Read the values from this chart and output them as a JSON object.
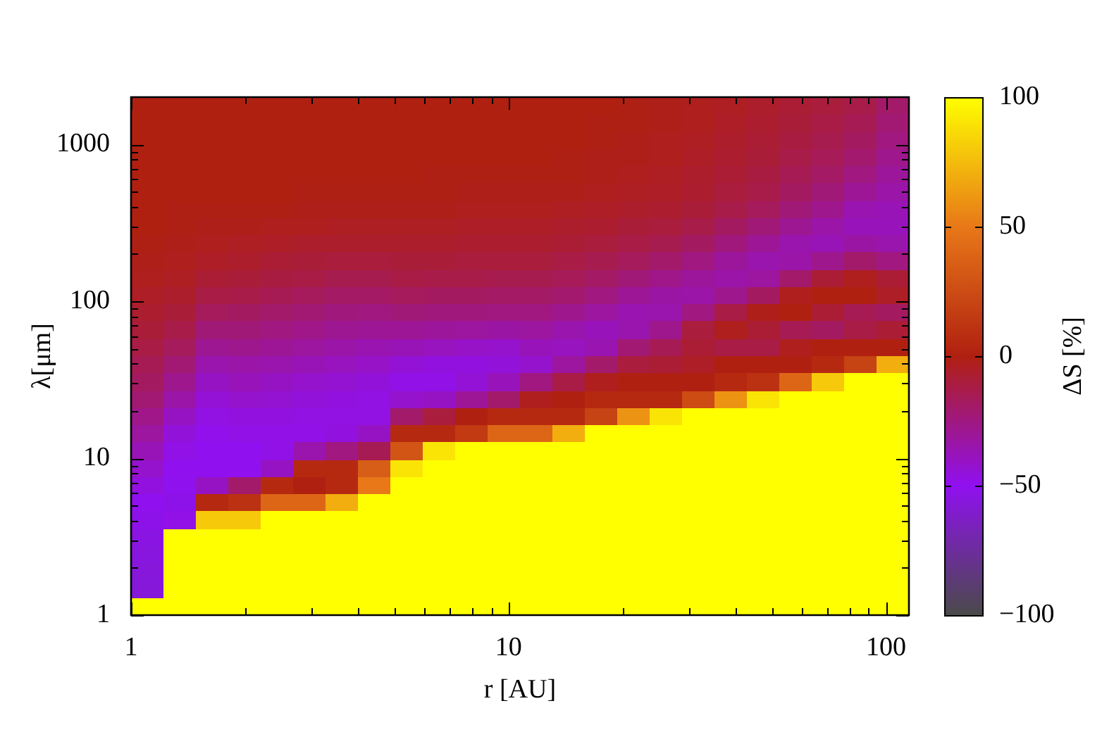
{
  "chart_data": {
    "type": "heatmap",
    "xlabel": "r [AU]",
    "ylabel": "λ[μm]",
    "clabel": "ΔS [%]",
    "log": "xy",
    "xlim": [
      1,
      115
    ],
    "ylim": [
      1,
      2000
    ],
    "xticks": [
      1,
      {
        "value": 2,
        "label": null
      },
      {
        "value": 3,
        "label": null
      },
      {
        "value": 4,
        "label": null
      },
      {
        "value": 5,
        "label": null
      },
      {
        "value": 6,
        "label": null
      },
      {
        "value": 7,
        "label": null
      },
      {
        "value": 8,
        "label": null
      },
      {
        "value": 9,
        "label": null
      },
      10,
      {
        "value": 20,
        "label": null
      },
      {
        "value": 30,
        "label": null
      },
      {
        "value": 40,
        "label": null
      },
      {
        "value": 50,
        "label": null
      },
      {
        "value": 60,
        "label": null
      },
      {
        "value": 70,
        "label": null
      },
      {
        "value": 80,
        "label": null
      },
      {
        "value": 90,
        "label": null
      },
      100
    ],
    "yticks": [
      1,
      {
        "value": 2,
        "label": null
      },
      {
        "value": 3,
        "label": null
      },
      {
        "value": 4,
        "label": null
      },
      {
        "value": 5,
        "label": null
      },
      {
        "value": 6,
        "label": null
      },
      {
        "value": 7,
        "label": null
      },
      {
        "value": 8,
        "label": null
      },
      {
        "value": 9,
        "label": null
      },
      10,
      {
        "value": 20,
        "label": null
      },
      {
        "value": 30,
        "label": null
      },
      {
        "value": 40,
        "label": null
      },
      {
        "value": 50,
        "label": null
      },
      {
        "value": 60,
        "label": null
      },
      {
        "value": 70,
        "label": null
      },
      {
        "value": 80,
        "label": null
      },
      {
        "value": 90,
        "label": null
      },
      100,
      {
        "value": 200,
        "label": null
      },
      {
        "value": 300,
        "label": null
      },
      {
        "value": 400,
        "label": null
      },
      {
        "value": 500,
        "label": null
      },
      {
        "value": 600,
        "label": null
      },
      {
        "value": 700,
        "label": null
      },
      {
        "value": 800,
        "label": null
      },
      {
        "value": 900,
        "label": null
      },
      1000
    ],
    "cells": [
      [
        0,
        0,
        0,
        0,
        0,
        0,
        0,
        0,
        0,
        0,
        0,
        0,
        0,
        0,
        0,
        -1,
        -2,
        -3,
        -4,
        -6,
        -8,
        -10,
        -13,
        -20
      ],
      [
        0,
        0,
        0,
        0,
        0,
        0,
        0,
        0,
        0,
        0,
        0,
        0,
        0,
        0,
        -1,
        -1,
        -2,
        -3,
        -5,
        -7,
        -9,
        -12,
        -15,
        -22
      ],
      [
        0,
        0,
        0,
        0,
        0,
        0,
        0,
        0,
        0,
        0,
        0,
        0,
        0,
        0,
        -1,
        -2,
        -3,
        -4,
        -6,
        -8,
        -11,
        -14,
        -18,
        -25
      ],
      [
        0,
        0,
        0,
        0,
        0,
        0,
        0,
        0,
        0,
        0,
        0,
        0,
        0,
        -1,
        -2,
        -2,
        -3,
        -5,
        -7,
        -9,
        -13,
        -16,
        -21,
        -28
      ],
      [
        0,
        0,
        0,
        0,
        0,
        0,
        0,
        0,
        0,
        -1,
        -1,
        -1,
        -1,
        -1,
        -2,
        -3,
        -4,
        -6,
        -8,
        -11,
        -15,
        -19,
        -25,
        -31
      ],
      [
        0,
        0,
        0,
        0,
        0,
        -1,
        -1,
        -1,
        -1,
        -1,
        -2,
        -2,
        -2,
        -2,
        -3,
        -4,
        -5,
        -7,
        -10,
        -13,
        -18,
        -23,
        -30,
        -34
      ],
      [
        0,
        -1,
        -1,
        -1,
        -1,
        -2,
        -2,
        -2,
        -2,
        -2,
        -3,
        -3,
        -3,
        -4,
        -5,
        -6,
        -7,
        -9,
        -13,
        -17,
        -23,
        -28,
        -36,
        -37
      ],
      [
        0,
        -1,
        -2,
        -2,
        -3,
        -3,
        -4,
        -4,
        -4,
        -4,
        -5,
        -5,
        -5,
        -6,
        -7,
        -9,
        -10,
        -13,
        -18,
        -23,
        -29,
        -34,
        -38,
        -38
      ],
      [
        -1,
        -2,
        -3,
        -4,
        -5,
        -6,
        -6,
        -6,
        -6,
        -6,
        -7,
        -7,
        -7,
        -8,
        -10,
        -12,
        -14,
        -18,
        -24,
        -30,
        -35,
        -37,
        -33,
        -35
      ],
      [
        -2,
        -3,
        -5,
        -6,
        -8,
        -9,
        -10,
        -10,
        -9,
        -9,
        -10,
        -10,
        -10,
        -12,
        -14,
        -17,
        -20,
        -25,
        -31,
        -35,
        -34,
        -28,
        -20,
        -25
      ],
      [
        -3,
        -4,
        -8,
        -9,
        -11,
        -12,
        -14,
        -14,
        -12,
        -13,
        -13,
        -14,
        -14,
        -16,
        -19,
        -23,
        -27,
        -31,
        -34,
        -32,
        -20,
        -8,
        -3,
        -8
      ],
      [
        -5,
        -6,
        -12,
        -13,
        -15,
        -17,
        -19,
        -19,
        -17,
        -18,
        -18,
        -19,
        -19,
        -21,
        -25,
        -30,
        -33,
        -34,
        -28,
        -18,
        -3,
        0,
        0,
        -5
      ],
      [
        -7,
        -9,
        -17,
        -18,
        -20,
        -22,
        -24,
        -25,
        -23,
        -24,
        -24,
        -25,
        -25,
        -28,
        -32,
        -36,
        -35,
        -25,
        -12,
        -2,
        0,
        -8,
        -15,
        -18
      ],
      [
        -9,
        -13,
        -23,
        -23,
        -25,
        -27,
        -29,
        -30,
        -30,
        -31,
        -32,
        -33,
        -32,
        -35,
        -38,
        -35,
        -28,
        -10,
        -3,
        -8,
        -15,
        -18,
        -12,
        -8
      ],
      [
        -12,
        -17,
        -29,
        -28,
        -30,
        -32,
        -34,
        -36,
        -37,
        -39,
        -41,
        -42,
        -38,
        -39,
        -36,
        -22,
        -15,
        -8,
        -12,
        -12,
        -3,
        0,
        0,
        0
      ],
      [
        -15,
        -22,
        -35,
        -34,
        -35,
        -37,
        -39,
        -41,
        -44,
        -46,
        -46,
        -45,
        -42,
        -32,
        -20,
        -10,
        -8,
        -5,
        0,
        0,
        0,
        5,
        20,
        70
      ],
      [
        -18,
        -28,
        -40,
        -38,
        -40,
        -42,
        -43,
        -45,
        -48,
        -48,
        -44,
        -38,
        -25,
        -12,
        -3,
        0,
        0,
        0,
        5,
        10,
        40,
        80,
        100,
        100
      ],
      [
        -22,
        -34,
        -44,
        -42,
        -43,
        -45,
        -46,
        -47,
        -42,
        -40,
        -30,
        -20,
        -3,
        0,
        5,
        5,
        5,
        25,
        60,
        90,
        100,
        100,
        100,
        100
      ],
      [
        -27,
        -40,
        -47,
        -46,
        -46,
        -47,
        -47,
        -47,
        -20,
        -10,
        0,
        5,
        5,
        5,
        20,
        60,
        90,
        100,
        100,
        100,
        100,
        100,
        100,
        100
      ],
      [
        -32,
        -45,
        -49,
        -48,
        -48,
        -48,
        -46,
        -40,
        5,
        5,
        15,
        40,
        40,
        70,
        100,
        100,
        100,
        100,
        100,
        100,
        100,
        100,
        100,
        100
      ],
      [
        -37,
        -48,
        -50,
        -50,
        -48,
        -35,
        -25,
        -15,
        30,
        90,
        100,
        100,
        100,
        100,
        100,
        100,
        100,
        100,
        100,
        100,
        100,
        100,
        100,
        100
      ],
      [
        -42,
        -50,
        -50,
        -50,
        -40,
        5,
        5,
        35,
        90,
        100,
        100,
        100,
        100,
        100,
        100,
        100,
        100,
        100,
        100,
        100,
        100,
        100,
        100,
        100
      ],
      [
        -46,
        -51,
        -40,
        -20,
        5,
        0,
        5,
        50,
        100,
        100,
        100,
        100,
        100,
        100,
        100,
        100,
        100,
        100,
        100,
        100,
        100,
        100,
        100,
        100
      ],
      [
        -50,
        -52,
        5,
        10,
        40,
        40,
        70,
        100,
        100,
        100,
        100,
        100,
        100,
        100,
        100,
        100,
        100,
        100,
        100,
        100,
        100,
        100,
        100,
        100
      ],
      [
        -52,
        -48,
        80,
        80,
        100,
        100,
        100,
        100,
        100,
        100,
        100,
        100,
        100,
        100,
        100,
        100,
        100,
        100,
        100,
        100,
        100,
        100,
        100,
        100
      ],
      [
        -54,
        100,
        100,
        100,
        100,
        100,
        100,
        100,
        100,
        100,
        100,
        100,
        100,
        100,
        100,
        100,
        100,
        100,
        100,
        100,
        100,
        100,
        100,
        100
      ],
      [
        -55,
        100,
        100,
        100,
        100,
        100,
        100,
        100,
        100,
        100,
        100,
        100,
        100,
        100,
        100,
        100,
        100,
        100,
        100,
        100,
        100,
        100,
        100,
        100
      ],
      [
        -56,
        100,
        100,
        100,
        100,
        100,
        100,
        100,
        100,
        100,
        100,
        100,
        100,
        100,
        100,
        100,
        100,
        100,
        100,
        100,
        100,
        100,
        100,
        100
      ],
      [
        -57,
        100,
        100,
        100,
        100,
        100,
        100,
        100,
        100,
        100,
        100,
        100,
        100,
        100,
        100,
        100,
        100,
        100,
        100,
        100,
        100,
        100,
        100,
        100
      ],
      [
        100,
        100,
        100,
        100,
        100,
        100,
        100,
        100,
        100,
        100,
        100,
        100,
        100,
        100,
        100,
        100,
        100,
        100,
        100,
        100,
        100,
        100,
        100,
        100
      ]
    ],
    "clim": [
      -100,
      100
    ],
    "cticks": [
      {
        "value": -100,
        "label": "−100"
      },
      {
        "value": -50,
        "label": "−50"
      },
      0,
      50,
      100
    ]
  }
}
